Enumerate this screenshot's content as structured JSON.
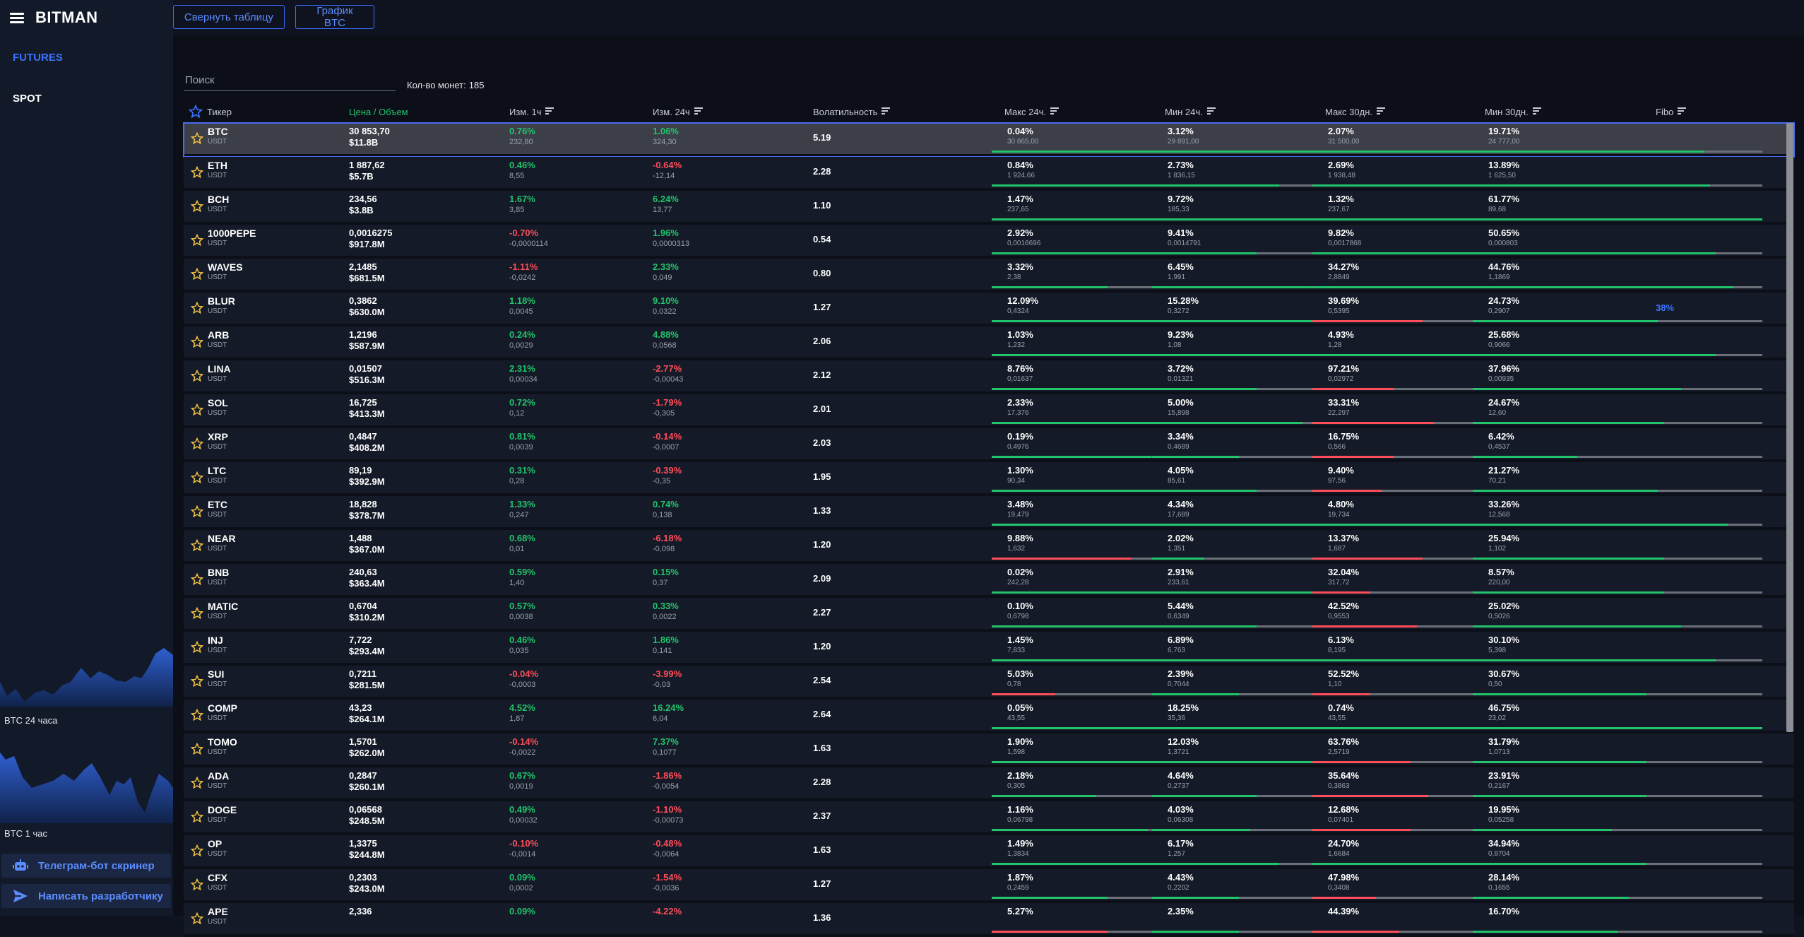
{
  "app": {
    "name": "BITMAN"
  },
  "nav": {
    "futures": "FUTURES",
    "spot": "SPOT"
  },
  "mini_charts": [
    {
      "label": "BTC 24 часа"
    },
    {
      "label": "BTC 1 час"
    }
  ],
  "side_buttons": {
    "telegram": "Телеграм-бот скринер",
    "developer": "Написать разработчику"
  },
  "toolbar": {
    "collapse_table": "Свернуть таблицу",
    "btc_chart": "График BTC"
  },
  "search": {
    "placeholder": "Поиск",
    "value": ""
  },
  "coin_count": {
    "label": "Кол-во монет:",
    "value": "185"
  },
  "colors": {
    "accent": "#3b73ff",
    "positive": "#22c36b",
    "negative": "#ff4d5a",
    "star": "#f5c542"
  },
  "columns": {
    "ticker": "Тикер",
    "price": "Цена / Объем",
    "change_1h": "Изм. 1ч",
    "change_24h": "Изм. 24ч",
    "volatility": "Волатильность",
    "max_24h": "Макс 24ч.",
    "min_24h": "Мин 24ч.",
    "max_30d": "Макс 30дн.",
    "min_30d": "Мин 30дн.",
    "fibo": "Fibo"
  },
  "rows": [
    {
      "ticker": "BTC",
      "quote": "USDT",
      "price": "30 853,70",
      "volume": "$11.8B",
      "ch1h_pct": "0.76%",
      "ch1h_abs": "232,80",
      "ch24h_pct": "1.06%",
      "ch24h_abs": "324,30",
      "volatility": "5.19",
      "max24_pct": "0.04%",
      "max24_val": "30 865,00",
      "max24_fill": 0.97,
      "min24_pct": "3.12%",
      "min24_val": "29 891,00",
      "min24_fill": 1.0,
      "max30_pct": "2.07%",
      "max30_val": "31 500,00",
      "max30_fill": 0.98,
      "min30_pct": "19.71%",
      "min30_val": "24 777,00",
      "min30_fill": 0.8,
      "fibo": "",
      "selected": true
    },
    {
      "ticker": "ETH",
      "quote": "USDT",
      "price": "1 887,62",
      "volume": "$5.7B",
      "ch1h_pct": "0.46%",
      "ch1h_abs": "8,55",
      "ch24h_pct": "-0.64%",
      "ch24h_abs": "-12,14",
      "volatility": "2.28",
      "max24_pct": "0.84%",
      "max24_val": "1 924,66",
      "max24_fill": 0.98,
      "min24_pct": "2.73%",
      "min24_val": "1 836,15",
      "min24_fill": 0.44,
      "max30_pct": "2.69%",
      "max30_val": "1 938,48",
      "max30_fill": 0.95,
      "min30_pct": "13.89%",
      "min30_val": "1 625,50",
      "min30_fill": 0.82,
      "fibo": ""
    },
    {
      "ticker": "BCH",
      "quote": "USDT",
      "price": "234,56",
      "volume": "$3.8B",
      "ch1h_pct": "1.67%",
      "ch1h_abs": "3,85",
      "ch24h_pct": "6.24%",
      "ch24h_abs": "13,77",
      "volatility": "1.10",
      "max24_pct": "1.47%",
      "max24_val": "237,65",
      "max24_fill": 0.96,
      "min24_pct": "9.72%",
      "min24_val": "185,33",
      "min24_fill": 0.9,
      "max30_pct": "1.32%",
      "max30_val": "237,67",
      "max30_fill": 0.98,
      "min30_pct": "61.77%",
      "min30_val": "89,68",
      "min30_fill": 1.0,
      "fibo": ""
    },
    {
      "ticker": "1000PEPE",
      "quote": "USDT",
      "price": "0,0016275",
      "volume": "$917.8M",
      "ch1h_pct": "-0.70%",
      "ch1h_abs": "-0,0000114",
      "ch24h_pct": "1.96%",
      "ch24h_abs": "0,0000313",
      "volatility": "0.54",
      "max24_pct": "2.92%",
      "max24_val": "0,0016696",
      "max24_fill": 0.64,
      "min24_pct": "9.41%",
      "min24_val": "0,0014791",
      "min24_fill": 0.36,
      "max30_pct": "9.82%",
      "max30_val": "0,0017868",
      "max30_fill": 0.62,
      "min30_pct": "50.65%",
      "min30_val": "0,000803",
      "min30_fill": 0.84,
      "fibo": ""
    },
    {
      "ticker": "WAVES",
      "quote": "USDT",
      "price": "2,1485",
      "volume": "$681.5M",
      "ch1h_pct": "-1.11%",
      "ch1h_abs": "-0,0242",
      "ch24h_pct": "2.33%",
      "ch24h_abs": "0,049",
      "volatility": "0.80",
      "max24_pct": "3.32%",
      "max24_val": "2,38",
      "max24_fill": 0.4,
      "min24_pct": "6.45%",
      "min24_val": "1,991",
      "min24_fill": 0.55,
      "max30_pct": "34.27%",
      "max30_val": "2,8849",
      "max30_fill": 0.58,
      "min30_pct": "44.76%",
      "min30_val": "1,1869",
      "min30_fill": 0.9,
      "fibo": ""
    },
    {
      "ticker": "BLUR",
      "quote": "USDT",
      "price": "0,3862",
      "volume": "$630.0M",
      "ch1h_pct": "1.18%",
      "ch1h_abs": "0,0045",
      "ch24h_pct": "9.10%",
      "ch24h_abs": "0,0322",
      "volatility": "1.27",
      "max24_pct": "12.09%",
      "max24_val": "0,4324",
      "max24_fill": 0.68,
      "min24_pct": "15.28%",
      "min24_val": "0,3272",
      "min24_fill": 0.68,
      "max30_pct": "39.69%",
      "max30_val": "0,5395",
      "max30_fill": 0.38,
      "min30_pct": "24.73%",
      "min30_val": "0,2907",
      "min30_fill": 0.64,
      "fibo": "38%"
    },
    {
      "ticker": "ARB",
      "quote": "USDT",
      "price": "1,2196",
      "volume": "$587.9M",
      "ch1h_pct": "0.24%",
      "ch1h_abs": "0,0029",
      "ch24h_pct": "4.88%",
      "ch24h_abs": "0,0568",
      "volatility": "2.06",
      "max24_pct": "1.03%",
      "max24_val": "1,232",
      "max24_fill": 0.94,
      "min24_pct": "9.23%",
      "min24_val": "1,08",
      "min24_fill": 0.78,
      "max30_pct": "4.93%",
      "max30_val": "1,28",
      "max30_fill": 0.92,
      "min30_pct": "25.68%",
      "min30_val": "0,9066",
      "min30_fill": 0.84,
      "fibo": ""
    },
    {
      "ticker": "LINA",
      "quote": "USDT",
      "price": "0,01507",
      "volume": "$516.3M",
      "ch1h_pct": "2.31%",
      "ch1h_abs": "0,00034",
      "ch24h_pct": "-2.77%",
      "ch24h_abs": "-0,00043",
      "volatility": "2.12",
      "max24_pct": "8.76%",
      "max24_val": "0,01637",
      "max24_fill": 0.62,
      "min24_pct": "3.72%",
      "min24_val": "0,01321",
      "min24_fill": 0.36,
      "max30_pct": "97.21%",
      "max30_val": "0,02972",
      "max30_fill": 0.28,
      "min30_pct": "37.96%",
      "min30_val": "0,00935",
      "min30_fill": 0.72,
      "fibo": ""
    },
    {
      "ticker": "SOL",
      "quote": "USDT",
      "price": "16,725",
      "volume": "$413.3M",
      "ch1h_pct": "0.72%",
      "ch1h_abs": "0,12",
      "ch24h_pct": "-1.79%",
      "ch24h_abs": "-0,305",
      "volatility": "2.01",
      "max24_pct": "2.33%",
      "max24_val": "17,376",
      "max24_fill": 0.82,
      "min24_pct": "5.00%",
      "min24_val": "15,898",
      "min24_fill": 0.52,
      "max30_pct": "33.31%",
      "max30_val": "22,297",
      "max30_fill": 0.42,
      "min30_pct": "24.67%",
      "min30_val": "12,60",
      "min30_fill": 0.66,
      "fibo": ""
    },
    {
      "ticker": "XRP",
      "quote": "USDT",
      "price": "0,4847",
      "volume": "$408.2M",
      "ch1h_pct": "0.81%",
      "ch1h_abs": "0,0039",
      "ch24h_pct": "-0.14%",
      "ch24h_abs": "-0,0007",
      "volatility": "2.03",
      "max24_pct": "0.19%",
      "max24_val": "0,4976",
      "max24_fill": 0.55,
      "min24_pct": "3.34%",
      "min24_val": "0,4689",
      "min24_fill": 0.3,
      "max30_pct": "16.75%",
      "max30_val": "0,566",
      "max30_fill": 0.28,
      "min30_pct": "6.42%",
      "min30_val": "0,4537",
      "min30_fill": 0.36,
      "fibo": ""
    },
    {
      "ticker": "LTC",
      "quote": "USDT",
      "price": "89,19",
      "volume": "$392.9M",
      "ch1h_pct": "0.31%",
      "ch1h_abs": "0,28",
      "ch24h_pct": "-0.39%",
      "ch24h_abs": "-0,35",
      "volatility": "1.95",
      "max24_pct": "1.30%",
      "max24_val": "90,34",
      "max24_fill": 0.94,
      "min24_pct": "4.05%",
      "min24_val": "85,61",
      "min24_fill": 0.36,
      "max30_pct": "9.40%",
      "max30_val": "97,56",
      "max30_fill": 0.24,
      "min30_pct": "21.27%",
      "min30_val": "70,21",
      "min30_fill": 0.64,
      "fibo": ""
    },
    {
      "ticker": "ETC",
      "quote": "USDT",
      "price": "18,828",
      "volume": "$378.7M",
      "ch1h_pct": "1.33%",
      "ch1h_abs": "0,247",
      "ch24h_pct": "0.74%",
      "ch24h_abs": "0,138",
      "volatility": "1.33",
      "max24_pct": "3.48%",
      "max24_val": "19,479",
      "max24_fill": 0.78,
      "min24_pct": "4.34%",
      "min24_val": "17,689",
      "min24_fill": 0.62,
      "max30_pct": "4.80%",
      "max30_val": "19,734",
      "max30_fill": 0.92,
      "min30_pct": "33.26%",
      "min30_val": "12,568",
      "min30_fill": 0.88,
      "fibo": ""
    },
    {
      "ticker": "NEAR",
      "quote": "USDT",
      "price": "1,488",
      "volume": "$367.0M",
      "ch1h_pct": "0.68%",
      "ch1h_abs": "0,01",
      "ch24h_pct": "-6.18%",
      "ch24h_abs": "-0,098",
      "volatility": "1.20",
      "max24_pct": "9.88%",
      "max24_val": "1,632",
      "max24_fill": 0.48,
      "min24_pct": "2.02%",
      "min24_val": "1,351",
      "min24_fill": 0.18,
      "max30_pct": "13.37%",
      "max30_val": "1,687",
      "max30_fill": 0.38,
      "min30_pct": "25.94%",
      "min30_val": "1,102",
      "min30_fill": 0.66,
      "fibo": ""
    },
    {
      "ticker": "BNB",
      "quote": "USDT",
      "price": "240,63",
      "volume": "$363.4M",
      "ch1h_pct": "0.59%",
      "ch1h_abs": "1,40",
      "ch24h_pct": "0.15%",
      "ch24h_abs": "0,37",
      "volatility": "2.09",
      "max24_pct": "0.02%",
      "max24_val": "242,28",
      "max24_fill": 1.0,
      "min24_pct": "2.91%",
      "min24_val": "233,61",
      "min24_fill": 0.86,
      "max30_pct": "32.04%",
      "max30_val": "317,72",
      "max30_fill": 0.2,
      "min30_pct": "8.57%",
      "min30_val": "220,00",
      "min30_fill": 0.66,
      "fibo": ""
    },
    {
      "ticker": "MATIC",
      "quote": "USDT",
      "price": "0,6704",
      "volume": "$310.2M",
      "ch1h_pct": "0.57%",
      "ch1h_abs": "0,0038",
      "ch24h_pct": "0.33%",
      "ch24h_abs": "0,0022",
      "volatility": "2.27",
      "max24_pct": "0.10%",
      "max24_val": "0,6798",
      "max24_fill": 0.58,
      "min24_pct": "5.44%",
      "min24_val": "0,6349",
      "min24_fill": 0.36,
      "max30_pct": "42.52%",
      "max30_val": "0,9553",
      "max30_fill": 0.36,
      "min30_pct": "25.02%",
      "min30_val": "0,5026",
      "min30_fill": 0.72,
      "fibo": ""
    },
    {
      "ticker": "INJ",
      "quote": "USDT",
      "price": "7,722",
      "volume": "$293.4M",
      "ch1h_pct": "0.46%",
      "ch1h_abs": "0,035",
      "ch24h_pct": "1.86%",
      "ch24h_abs": "0,141",
      "volatility": "1.20",
      "max24_pct": "1.45%",
      "max24_val": "7,833",
      "max24_fill": 0.92,
      "min24_pct": "6.89%",
      "min24_val": "6,763",
      "min24_fill": 0.86,
      "max30_pct": "6.13%",
      "max30_val": "8,195",
      "max30_fill": 0.88,
      "min30_pct": "30.10%",
      "min30_val": "5,398",
      "min30_fill": 0.84,
      "fibo": ""
    },
    {
      "ticker": "SUI",
      "quote": "USDT",
      "price": "0,7211",
      "volume": "$281.5M",
      "ch1h_pct": "-0.04%",
      "ch1h_abs": "-0,0003",
      "ch24h_pct": "-3.99%",
      "ch24h_abs": "-0,03",
      "volatility": "2.54",
      "max24_pct": "5.03%",
      "max24_val": "0,78",
      "max24_fill": 0.22,
      "min24_pct": "2.39%",
      "min24_val": "0,7044",
      "min24_fill": 0.3,
      "max30_pct": "52.52%",
      "max30_val": "1,10",
      "max30_fill": 0.2,
      "min30_pct": "30.67%",
      "min30_val": "0,50",
      "min30_fill": 0.6,
      "fibo": ""
    },
    {
      "ticker": "COMP",
      "quote": "USDT",
      "price": "43,23",
      "volume": "$264.1M",
      "ch1h_pct": "4.52%",
      "ch1h_abs": "1,87",
      "ch24h_pct": "16.24%",
      "ch24h_abs": "6,04",
      "volatility": "2.64",
      "max24_pct": "0.05%",
      "max24_val": "43,55",
      "max24_fill": 0.98,
      "min24_pct": "18.25%",
      "min24_val": "35,36",
      "min24_fill": 0.95,
      "max30_pct": "0.74%",
      "max30_val": "43,55",
      "max30_fill": 0.98,
      "min30_pct": "46.75%",
      "min30_val": "23,02",
      "min30_fill": 1.0,
      "fibo": ""
    },
    {
      "ticker": "TOMO",
      "quote": "USDT",
      "price": "1,5701",
      "volume": "$262.0M",
      "ch1h_pct": "-0.14%",
      "ch1h_abs": "-0,0022",
      "ch24h_pct": "7.37%",
      "ch24h_abs": "0,1077",
      "volatility": "1.63",
      "max24_pct": "1.90%",
      "max24_val": "1,598",
      "max24_fill": 0.9,
      "min24_pct": "12.03%",
      "min24_val": "1,3721",
      "min24_fill": 0.82,
      "max30_pct": "63.76%",
      "max30_val": "2,5719",
      "max30_fill": 0.34,
      "min30_pct": "31.79%",
      "min30_val": "1,0713",
      "min30_fill": 0.6,
      "fibo": ""
    },
    {
      "ticker": "ADA",
      "quote": "USDT",
      "price": "0,2847",
      "volume": "$260.1M",
      "ch1h_pct": "0.67%",
      "ch1h_abs": "0,0019",
      "ch24h_pct": "-1.86%",
      "ch24h_abs": "-0,0054",
      "volatility": "2.28",
      "max24_pct": "2.18%",
      "max24_val": "0,305",
      "max24_fill": 0.36,
      "min24_pct": "4.64%",
      "min24_val": "0,2737",
      "min24_fill": 0.36,
      "max30_pct": "35.64%",
      "max30_val": "0,3863",
      "max30_fill": 0.4,
      "min30_pct": "23.91%",
      "min30_val": "0,2167",
      "min30_fill": 0.6,
      "fibo": ""
    },
    {
      "ticker": "DOGE",
      "quote": "USDT",
      "price": "0,06568",
      "volume": "$248.5M",
      "ch1h_pct": "0.49%",
      "ch1h_abs": "0,00032",
      "ch24h_pct": "-1.10%",
      "ch24h_abs": "-0,00073",
      "volatility": "2.37",
      "max24_pct": "1.16%",
      "max24_val": "0,06798",
      "max24_fill": 0.54,
      "min24_pct": "4.03%",
      "min24_val": "0,06308",
      "min24_fill": 0.34,
      "max30_pct": "12.68%",
      "max30_val": "0,07401",
      "max30_fill": 0.34,
      "min30_pct": "19.95%",
      "min30_val": "0,05258",
      "min30_fill": 0.48,
      "fibo": ""
    },
    {
      "ticker": "OP",
      "quote": "USDT",
      "price": "1,3375",
      "volume": "$244.8M",
      "ch1h_pct": "-0.10%",
      "ch1h_abs": "-0,0014",
      "ch24h_pct": "-0.48%",
      "ch24h_abs": "-0,0064",
      "volatility": "1.63",
      "max24_pct": "1.49%",
      "max24_val": "1,3834",
      "max24_fill": 0.88,
      "min24_pct": "6.17%",
      "min24_val": "1,257",
      "min24_fill": 0.44,
      "max30_pct": "24.70%",
      "max30_val": "1,6684",
      "max30_fill": 0.6,
      "min30_pct": "34.94%",
      "min30_val": "0,8704",
      "min30_fill": 0.6,
      "fibo": ""
    },
    {
      "ticker": "CFX",
      "quote": "USDT",
      "price": "0,2303",
      "volume": "$243.0M",
      "ch1h_pct": "0.09%",
      "ch1h_abs": "0,0002",
      "ch24h_pct": "-1.54%",
      "ch24h_abs": "-0,0036",
      "volatility": "1.27",
      "max24_pct": "1.87%",
      "max24_val": "0,2459",
      "max24_fill": 0.4,
      "min24_pct": "4.43%",
      "min24_val": "0,2202",
      "min24_fill": 0.3,
      "max30_pct": "47.98%",
      "max30_val": "0,3408",
      "max30_fill": 0.22,
      "min30_pct": "28.14%",
      "min30_val": "0,1655",
      "min30_fill": 0.54,
      "fibo": ""
    },
    {
      "ticker": "APE",
      "quote": "USDT",
      "price": "2,336",
      "volume": "",
      "ch1h_pct": "0.09%",
      "ch1h_abs": "",
      "ch24h_pct": "-4.22%",
      "ch24h_abs": "",
      "volatility": "1.36",
      "max24_pct": "5.27%",
      "max24_val": "",
      "max24_fill": 0.4,
      "min24_pct": "2.35%",
      "min24_val": "",
      "min24_fill": 0.3,
      "max30_pct": "44.39%",
      "max30_val": "",
      "max30_fill": 0.3,
      "min30_pct": "16.70%",
      "min30_val": "",
      "min30_fill": 0.5,
      "fibo": ""
    }
  ]
}
